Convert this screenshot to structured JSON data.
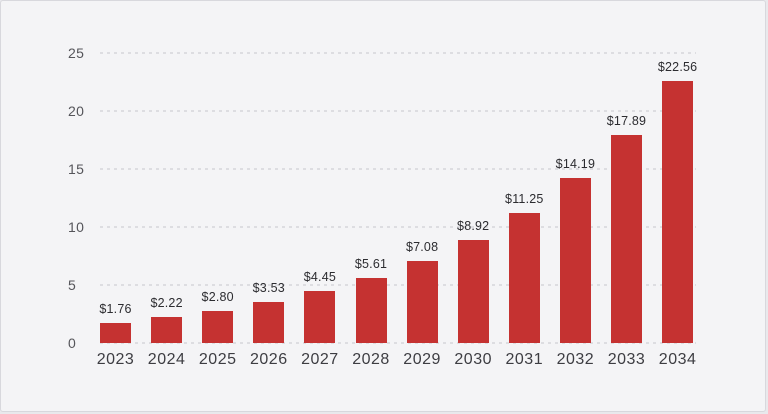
{
  "chart_data": {
    "type": "bar",
    "title": "",
    "xlabel": "",
    "ylabel": "",
    "categories": [
      "2023",
      "2024",
      "2025",
      "2026",
      "2027",
      "2028",
      "2029",
      "2030",
      "2031",
      "2032",
      "2033",
      "2034"
    ],
    "values": [
      1.76,
      2.22,
      2.8,
      3.53,
      4.45,
      5.61,
      7.08,
      8.92,
      11.25,
      14.19,
      17.89,
      22.56
    ],
    "value_labels": [
      "$1.76",
      "$2.22",
      "$2.80",
      "$3.53",
      "$4.45",
      "$5.61",
      "$7.08",
      "$8.92",
      "$11.25",
      "$14.19",
      "$17.89",
      "$22.56"
    ],
    "yticks": [
      0,
      5,
      10,
      15,
      20,
      25
    ],
    "ylim": [
      0,
      25
    ],
    "grid": "horizontal-dashed",
    "legend": "none",
    "colors": {
      "bar": "#c53231",
      "background": "#f4f4f6",
      "border": "#d8d8dd",
      "gridline": "#dddde1",
      "value_label": "#2c2c30",
      "x_tick_label": "#3d3d42",
      "y_tick_label": "#55555a"
    }
  }
}
